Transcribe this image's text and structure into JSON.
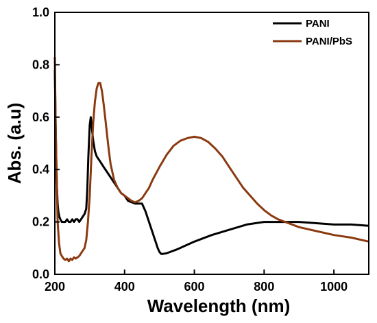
{
  "chart_data": {
    "type": "line",
    "title": "",
    "xlabel": "Wavelength (nm)",
    "ylabel": "Abs. (a.u)",
    "xlim": [
      200,
      1100
    ],
    "ylim": [
      0.0,
      1.0
    ],
    "x_ticks": [
      200,
      400,
      600,
      800,
      1000
    ],
    "x_tick_labels": [
      "200",
      "400",
      "600",
      "800",
      "1000"
    ],
    "y_ticks": [
      0.0,
      0.2,
      0.4,
      0.6,
      0.8,
      1.0
    ],
    "y_tick_labels": [
      "0.0",
      "0.2",
      "0.4",
      "0.6",
      "0.8",
      "1.0"
    ],
    "legend_position": "top-right",
    "grid": false,
    "series": [
      {
        "name": "PANI",
        "color": "#000000",
        "x": [
          200,
          202,
          204,
          206,
          208,
          210,
          213,
          216,
          220,
          225,
          230,
          235,
          240,
          245,
          250,
          255,
          260,
          265,
          270,
          275,
          280,
          285,
          290,
          293,
          296,
          300,
          303,
          306,
          310,
          315,
          320,
          330,
          340,
          350,
          360,
          370,
          380,
          390,
          400,
          410,
          420,
          430,
          440,
          450,
          460,
          470,
          480,
          490,
          495,
          500,
          505,
          510,
          520,
          530,
          550,
          575,
          600,
          650,
          700,
          750,
          800,
          850,
          900,
          950,
          1000,
          1050,
          1100
        ],
        "y": [
          0.78,
          0.6,
          0.45,
          0.33,
          0.27,
          0.24,
          0.22,
          0.21,
          0.2,
          0.2,
          0.2,
          0.21,
          0.2,
          0.2,
          0.21,
          0.2,
          0.21,
          0.21,
          0.2,
          0.21,
          0.22,
          0.23,
          0.25,
          0.32,
          0.45,
          0.57,
          0.6,
          0.56,
          0.51,
          0.47,
          0.45,
          0.43,
          0.41,
          0.39,
          0.37,
          0.35,
          0.33,
          0.31,
          0.3,
          0.28,
          0.275,
          0.27,
          0.27,
          0.27,
          0.24,
          0.2,
          0.16,
          0.12,
          0.1,
          0.085,
          0.078,
          0.078,
          0.08,
          0.085,
          0.095,
          0.11,
          0.125,
          0.15,
          0.17,
          0.19,
          0.2,
          0.2,
          0.2,
          0.195,
          0.19,
          0.19,
          0.185
        ]
      },
      {
        "name": "PANI/PbS",
        "color": "#8B3A10",
        "x": [
          200,
          202,
          204,
          206,
          208,
          212,
          216,
          220,
          225,
          230,
          235,
          240,
          245,
          250,
          255,
          260,
          265,
          270,
          275,
          280,
          285,
          290,
          295,
          300,
          305,
          310,
          315,
          320,
          325,
          330,
          335,
          340,
          345,
          350,
          355,
          360,
          370,
          380,
          390,
          400,
          410,
          420,
          430,
          440,
          450,
          460,
          470,
          480,
          500,
          520,
          540,
          560,
          580,
          600,
          620,
          640,
          660,
          680,
          700,
          720,
          740,
          760,
          780,
          800,
          820,
          840,
          860,
          880,
          900,
          950,
          1000,
          1050,
          1100
        ],
        "y": [
          0.83,
          0.6,
          0.45,
          0.32,
          0.2,
          0.12,
          0.08,
          0.07,
          0.06,
          0.055,
          0.06,
          0.05,
          0.06,
          0.055,
          0.065,
          0.06,
          0.065,
          0.07,
          0.08,
          0.09,
          0.1,
          0.13,
          0.2,
          0.3,
          0.45,
          0.58,
          0.66,
          0.71,
          0.73,
          0.73,
          0.7,
          0.65,
          0.59,
          0.53,
          0.47,
          0.42,
          0.36,
          0.33,
          0.31,
          0.3,
          0.29,
          0.28,
          0.275,
          0.28,
          0.29,
          0.31,
          0.33,
          0.36,
          0.41,
          0.455,
          0.49,
          0.51,
          0.52,
          0.525,
          0.52,
          0.505,
          0.48,
          0.45,
          0.41,
          0.37,
          0.33,
          0.3,
          0.27,
          0.245,
          0.225,
          0.21,
          0.2,
          0.19,
          0.18,
          0.165,
          0.15,
          0.14,
          0.125
        ]
      }
    ]
  }
}
